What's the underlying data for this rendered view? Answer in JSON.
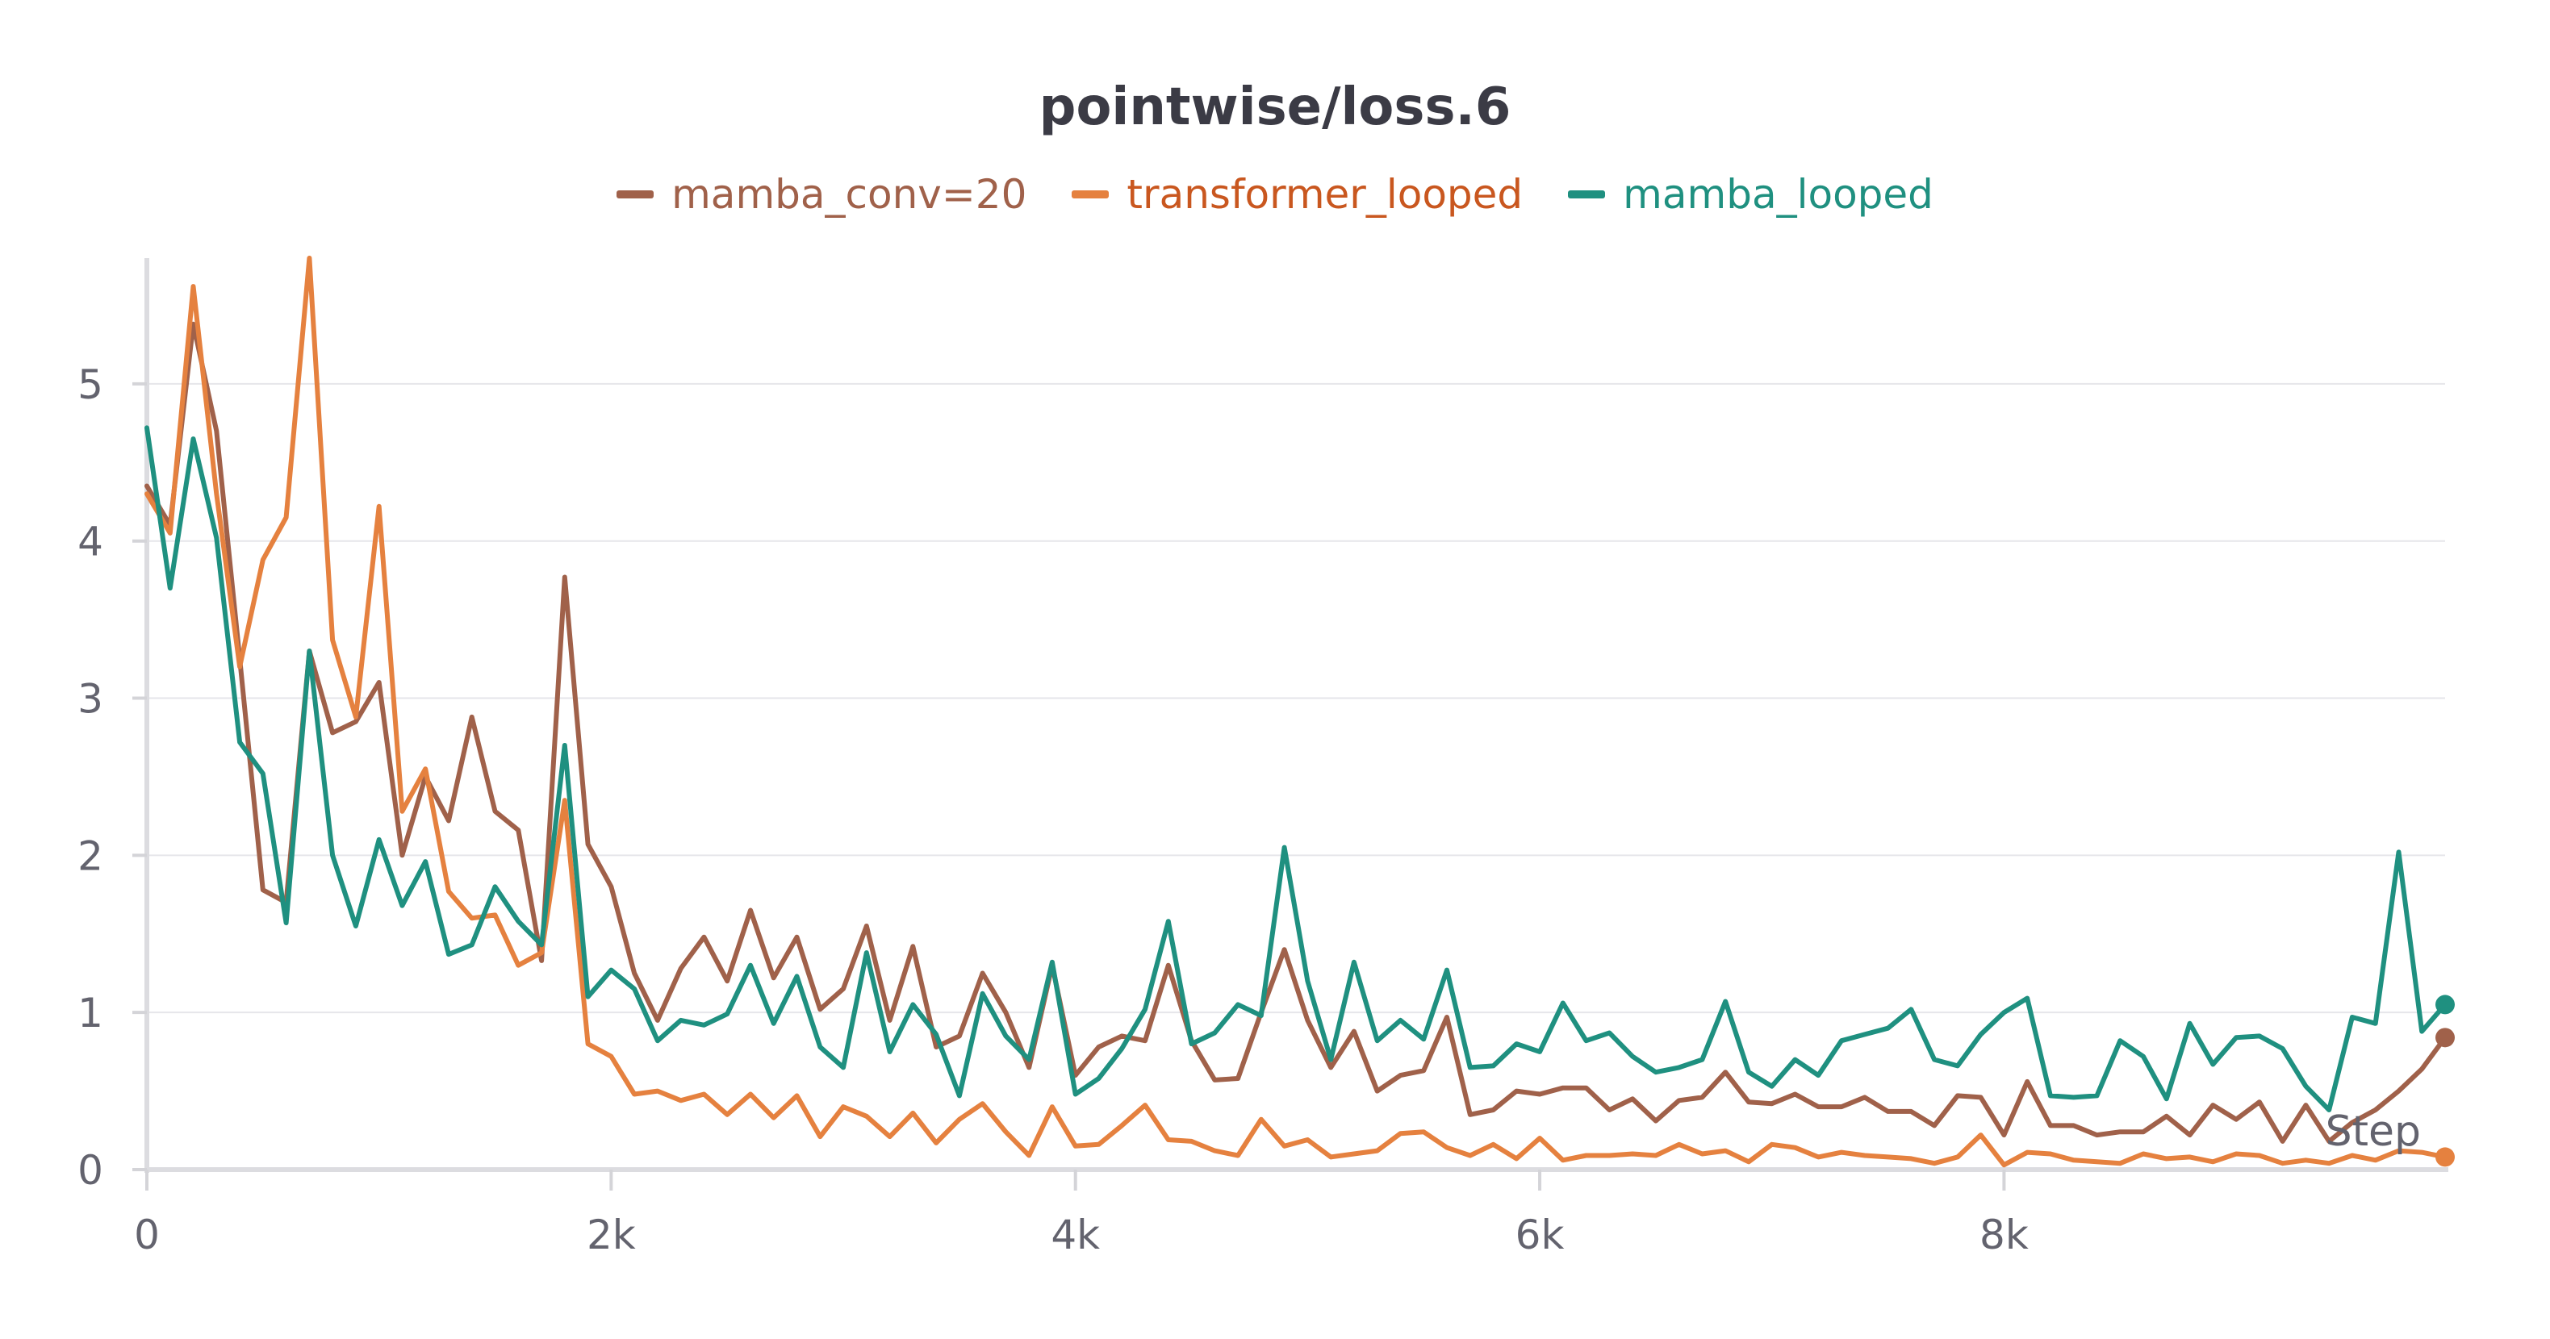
{
  "chart_data": {
    "type": "line",
    "title": "pointwise/loss.6",
    "xlabel": "Step",
    "ylabel": "",
    "xlim": [
      0,
      9900
    ],
    "ylim": [
      0,
      5.8
    ],
    "x_ticks": [
      0,
      2000,
      4000,
      6000,
      8000
    ],
    "x_tick_labels": [
      "0",
      "2k",
      "4k",
      "6k",
      "8k"
    ],
    "y_ticks": [
      0,
      1,
      2,
      3,
      4,
      5
    ],
    "y_tick_labels": [
      "0",
      "1",
      "2",
      "3",
      "4",
      "5"
    ],
    "grid": true,
    "legend_position": "top-center",
    "series": [
      {
        "name": "mamba_conv=20",
        "color": "#a0614a",
        "x": [
          0,
          100,
          200,
          300,
          400,
          500,
          600,
          700,
          800,
          900,
          1000,
          1100,
          1200,
          1300,
          1400,
          1500,
          1600,
          1700,
          1800,
          1900,
          2000,
          2100,
          2200,
          2300,
          2400,
          2500,
          2600,
          2700,
          2800,
          2900,
          3000,
          3100,
          3200,
          3300,
          3400,
          3500,
          3600,
          3700,
          3800,
          3900,
          4000,
          4100,
          4200,
          4300,
          4400,
          4500,
          4600,
          4700,
          4800,
          4900,
          5000,
          5100,
          5200,
          5300,
          5400,
          5500,
          5600,
          5700,
          5800,
          5900,
          6000,
          6100,
          6200,
          6300,
          6400,
          6500,
          6600,
          6700,
          6800,
          6900,
          7000,
          7100,
          7200,
          7300,
          7400,
          7500,
          7600,
          7700,
          7800,
          7900,
          8000,
          8100,
          8200,
          8300,
          8400,
          8500,
          8600,
          8700,
          8800,
          8900,
          9000,
          9100,
          9200,
          9300,
          9400,
          9500,
          9600,
          9700,
          9800,
          9900
        ],
        "values": [
          4.35,
          4.1,
          5.38,
          4.7,
          3.25,
          1.78,
          1.7,
          3.3,
          2.78,
          2.85,
          3.1,
          2.0,
          2.5,
          2.22,
          2.88,
          2.28,
          2.16,
          1.33,
          3.77,
          2.07,
          1.8,
          1.25,
          0.95,
          1.28,
          1.48,
          1.2,
          1.65,
          1.22,
          1.48,
          1.02,
          1.15,
          1.55,
          0.95,
          1.42,
          0.78,
          0.85,
          1.25,
          1.0,
          0.65,
          1.3,
          0.6,
          0.78,
          0.85,
          0.82,
          1.3,
          0.82,
          0.57,
          0.58,
          1.0,
          1.4,
          0.95,
          0.65,
          0.88,
          0.5,
          0.6,
          0.63,
          0.97,
          0.35,
          0.38,
          0.5,
          0.48,
          0.52,
          0.52,
          0.38,
          0.45,
          0.31,
          0.44,
          0.46,
          0.62,
          0.43,
          0.42,
          0.48,
          0.4,
          0.4,
          0.46,
          0.37,
          0.37,
          0.28,
          0.47,
          0.46,
          0.22,
          0.56,
          0.28,
          0.28,
          0.22,
          0.24,
          0.24,
          0.34,
          0.22,
          0.41,
          0.32,
          0.43,
          0.18,
          0.41,
          0.18,
          0.3,
          0.38,
          0.5,
          0.64,
          0.84
        ]
      },
      {
        "name": "transformer_looped",
        "color": "#e5813f",
        "x": [
          0,
          100,
          200,
          300,
          400,
          500,
          600,
          700,
          800,
          900,
          1000,
          1100,
          1200,
          1300,
          1400,
          1500,
          1600,
          1700,
          1800,
          1900,
          2000,
          2100,
          2200,
          2300,
          2400,
          2500,
          2600,
          2700,
          2800,
          2900,
          3000,
          3100,
          3200,
          3300,
          3400,
          3500,
          3600,
          3700,
          3800,
          3900,
          4000,
          4100,
          4200,
          4300,
          4400,
          4500,
          4600,
          4700,
          4800,
          4900,
          5000,
          5100,
          5200,
          5300,
          5400,
          5500,
          5600,
          5700,
          5800,
          5900,
          6000,
          6100,
          6200,
          6300,
          6400,
          6500,
          6600,
          6700,
          6800,
          6900,
          7000,
          7100,
          7200,
          7300,
          7400,
          7500,
          7600,
          7700,
          7800,
          7900,
          8000,
          8100,
          8200,
          8300,
          8400,
          8500,
          8600,
          8700,
          8800,
          8900,
          9000,
          9100,
          9200,
          9300,
          9400,
          9500,
          9600,
          9700,
          9800,
          9900
        ],
        "values": [
          4.3,
          4.05,
          5.62,
          4.3,
          3.2,
          3.88,
          4.15,
          5.8,
          3.37,
          2.88,
          4.22,
          2.28,
          2.55,
          1.77,
          1.6,
          1.62,
          1.3,
          1.38,
          2.35,
          0.8,
          0.72,
          0.48,
          0.5,
          0.44,
          0.48,
          0.35,
          0.48,
          0.33,
          0.47,
          0.21,
          0.4,
          0.34,
          0.21,
          0.36,
          0.17,
          0.32,
          0.42,
          0.24,
          0.09,
          0.4,
          0.15,
          0.16,
          0.28,
          0.41,
          0.19,
          0.18,
          0.12,
          0.09,
          0.32,
          0.15,
          0.19,
          0.08,
          0.1,
          0.12,
          0.23,
          0.24,
          0.14,
          0.09,
          0.16,
          0.07,
          0.2,
          0.06,
          0.09,
          0.09,
          0.1,
          0.09,
          0.16,
          0.1,
          0.12,
          0.05,
          0.16,
          0.14,
          0.08,
          0.11,
          0.09,
          0.08,
          0.07,
          0.04,
          0.08,
          0.22,
          0.03,
          0.11,
          0.1,
          0.06,
          0.05,
          0.04,
          0.1,
          0.07,
          0.08,
          0.05,
          0.1,
          0.09,
          0.04,
          0.06,
          0.04,
          0.09,
          0.06,
          0.12,
          0.11,
          0.08
        ]
      },
      {
        "name": "mamba_looped",
        "color": "#1f9080",
        "x": [
          0,
          100,
          200,
          300,
          400,
          500,
          600,
          700,
          800,
          900,
          1000,
          1100,
          1200,
          1300,
          1400,
          1500,
          1600,
          1700,
          1800,
          1900,
          2000,
          2100,
          2200,
          2300,
          2400,
          2500,
          2600,
          2700,
          2800,
          2900,
          3000,
          3100,
          3200,
          3300,
          3400,
          3500,
          3600,
          3700,
          3800,
          3900,
          4000,
          4100,
          4200,
          4300,
          4400,
          4500,
          4600,
          4700,
          4800,
          4900,
          5000,
          5100,
          5200,
          5300,
          5400,
          5500,
          5600,
          5700,
          5800,
          5900,
          6000,
          6100,
          6200,
          6300,
          6400,
          6500,
          6600,
          6700,
          6800,
          6900,
          7000,
          7100,
          7200,
          7300,
          7400,
          7500,
          7600,
          7700,
          7800,
          7900,
          8000,
          8100,
          8200,
          8300,
          8400,
          8500,
          8600,
          8700,
          8800,
          8900,
          9000,
          9100,
          9200,
          9300,
          9400,
          9500,
          9600,
          9700,
          9800,
          9900
        ],
        "values": [
          4.72,
          3.7,
          4.65,
          4.02,
          2.72,
          2.52,
          1.57,
          3.3,
          2.0,
          1.55,
          2.1,
          1.68,
          1.96,
          1.37,
          1.43,
          1.8,
          1.58,
          1.43,
          2.7,
          1.1,
          1.27,
          1.15,
          0.82,
          0.95,
          0.92,
          0.99,
          1.3,
          0.93,
          1.23,
          0.78,
          0.65,
          1.38,
          0.75,
          1.05,
          0.86,
          0.47,
          1.12,
          0.85,
          0.7,
          1.32,
          0.48,
          0.58,
          0.77,
          1.02,
          1.58,
          0.8,
          0.87,
          1.05,
          0.98,
          2.05,
          1.2,
          0.7,
          1.32,
          0.82,
          0.95,
          0.83,
          1.27,
          0.65,
          0.66,
          0.8,
          0.75,
          1.06,
          0.82,
          0.87,
          0.72,
          0.62,
          0.65,
          0.7,
          1.07,
          0.62,
          0.53,
          0.7,
          0.6,
          0.82,
          0.86,
          0.9,
          1.02,
          0.7,
          0.66,
          0.86,
          1.0,
          1.09,
          0.47,
          0.46,
          0.47,
          0.82,
          0.72,
          0.45,
          0.93,
          0.67,
          0.84,
          0.85,
          0.77,
          0.53,
          0.38,
          0.97,
          0.93,
          2.02,
          0.88,
          1.05
        ]
      }
    ]
  }
}
